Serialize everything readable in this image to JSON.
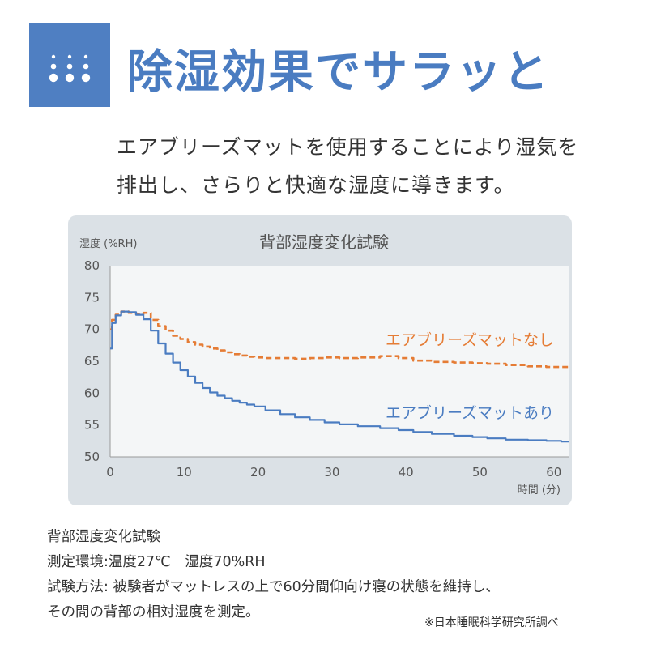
{
  "header": {
    "badge_icon": "droplet-dots-icon",
    "title": "除湿効果でサラッと"
  },
  "intro": {
    "line1": "エアブリーズマットを使用することにより湿気を",
    "line2": "排出し、さらりと快適な湿度に導きます。"
  },
  "chart_data": {
    "type": "line",
    "title": "背部湿度変化試験",
    "ylabel": "湿度 (%RH)",
    "xlabel": "時間 (分)",
    "xlim": [
      0,
      62
    ],
    "ylim": [
      50,
      80
    ],
    "xticks": [
      0,
      10,
      20,
      30,
      40,
      50,
      60
    ],
    "yticks": [
      50,
      55,
      60,
      65,
      70,
      75,
      80
    ],
    "grid": false,
    "legend": "inline labels next to lines",
    "series": [
      {
        "name": "エアブリーズマットなし",
        "color": "#e57c35",
        "style": "dashed",
        "points": [
          [
            0,
            70.0
          ],
          [
            0.5,
            71.5
          ],
          [
            1,
            72.3
          ],
          [
            2,
            72.8
          ],
          [
            3,
            72.6
          ],
          [
            4,
            72.4
          ],
          [
            5,
            72.6
          ],
          [
            6,
            71.5
          ],
          [
            7,
            70.5
          ],
          [
            8,
            69.8
          ],
          [
            9,
            69.0
          ],
          [
            10,
            68.5
          ],
          [
            11,
            68.0
          ],
          [
            12,
            67.6
          ],
          [
            13,
            67.3
          ],
          [
            14,
            67.0
          ],
          [
            15,
            66.7
          ],
          [
            16,
            66.4
          ],
          [
            17,
            66.1
          ],
          [
            18,
            65.9
          ],
          [
            19,
            65.7
          ],
          [
            20,
            65.6
          ],
          [
            22,
            65.5
          ],
          [
            24,
            65.5
          ],
          [
            26,
            65.4
          ],
          [
            28,
            65.5
          ],
          [
            30,
            65.6
          ],
          [
            32,
            65.5
          ],
          [
            35,
            65.6
          ],
          [
            38,
            65.8
          ],
          [
            40,
            65.5
          ],
          [
            42,
            65.1
          ],
          [
            45,
            64.9
          ],
          [
            48,
            64.8
          ],
          [
            50,
            64.7
          ],
          [
            52,
            64.6
          ],
          [
            55,
            64.4
          ],
          [
            58,
            64.2
          ],
          [
            60,
            64.1
          ],
          [
            62,
            64.1
          ]
        ]
      },
      {
        "name": "エアブリーズマットあり",
        "color": "#4a7cc1",
        "style": "solid",
        "points": [
          [
            0,
            67.0
          ],
          [
            0.5,
            71.0
          ],
          [
            1,
            72.2
          ],
          [
            2,
            72.8
          ],
          [
            3,
            72.7
          ],
          [
            4,
            72.3
          ],
          [
            5,
            71.6
          ],
          [
            6,
            69.8
          ],
          [
            7,
            67.8
          ],
          [
            8,
            66.2
          ],
          [
            9,
            64.8
          ],
          [
            10,
            63.6
          ],
          [
            11,
            62.6
          ],
          [
            12,
            61.6
          ],
          [
            13,
            60.8
          ],
          [
            14,
            60.1
          ],
          [
            15,
            59.6
          ],
          [
            16,
            59.2
          ],
          [
            17,
            58.8
          ],
          [
            18,
            58.5
          ],
          [
            19,
            58.2
          ],
          [
            20,
            57.9
          ],
          [
            22,
            57.3
          ],
          [
            24,
            56.7
          ],
          [
            26,
            56.2
          ],
          [
            28,
            55.8
          ],
          [
            30,
            55.4
          ],
          [
            32,
            55.1
          ],
          [
            35,
            54.8
          ],
          [
            38,
            54.5
          ],
          [
            40,
            54.2
          ],
          [
            42,
            53.9
          ],
          [
            45,
            53.6
          ],
          [
            48,
            53.3
          ],
          [
            50,
            53.1
          ],
          [
            52,
            52.9
          ],
          [
            55,
            52.7
          ],
          [
            58,
            52.6
          ],
          [
            60,
            52.5
          ],
          [
            62,
            52.4
          ]
        ]
      }
    ]
  },
  "caption": {
    "line1": "背部湿度変化試験",
    "line2": "測定環境:温度27℃　湿度70%RH",
    "line3": "試験方法: 被験者がマットレスの上で60分間仰向け寝の状態を維持し、",
    "line4": "その間の背部の相対湿度を測定。",
    "note": "※日本睡眠科学研究所調べ"
  }
}
